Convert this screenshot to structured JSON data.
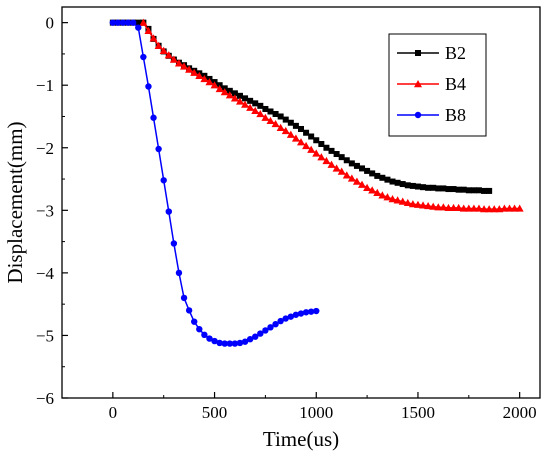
{
  "chart_data": {
    "type": "line",
    "title": "",
    "xlabel": "Time(us)",
    "ylabel": "Displacement(mm)",
    "xlim": [
      -250,
      2100
    ],
    "ylim": [
      -6,
      0.25
    ],
    "xticks": [
      0,
      500,
      1000,
      1500,
      2000
    ],
    "yticks": [
      0,
      -1,
      -2,
      -3,
      -4,
      -5,
      -6
    ],
    "grid": false,
    "legend_position": "top-right",
    "series": [
      {
        "name": "B2",
        "color": "#000000",
        "marker": "square",
        "x": [
          0,
          25,
          50,
          75,
          100,
          125,
          150,
          175,
          200,
          225,
          250,
          275,
          300,
          325,
          350,
          375,
          400,
          425,
          450,
          475,
          500,
          525,
          550,
          575,
          600,
          625,
          650,
          675,
          700,
          725,
          750,
          775,
          800,
          825,
          850,
          875,
          900,
          925,
          950,
          975,
          1000,
          1025,
          1050,
          1075,
          1100,
          1125,
          1150,
          1175,
          1200,
          1225,
          1250,
          1275,
          1300,
          1325,
          1350,
          1375,
          1400,
          1425,
          1450,
          1475,
          1500,
          1525,
          1550,
          1575,
          1600,
          1625,
          1650,
          1675,
          1700,
          1725,
          1750,
          1775,
          1800,
          1825,
          1850
        ],
        "y": [
          0,
          0,
          0,
          0,
          0,
          0,
          0,
          -0.1,
          -0.26,
          -0.37,
          -0.46,
          -0.53,
          -0.59,
          -0.64,
          -0.68,
          -0.73,
          -0.77,
          -0.81,
          -0.85,
          -0.9,
          -0.95,
          -1.0,
          -1.05,
          -1.09,
          -1.13,
          -1.17,
          -1.21,
          -1.25,
          -1.29,
          -1.33,
          -1.38,
          -1.42,
          -1.46,
          -1.5,
          -1.55,
          -1.6,
          -1.65,
          -1.7,
          -1.76,
          -1.82,
          -1.88,
          -1.94,
          -2.0,
          -2.05,
          -2.1,
          -2.15,
          -2.2,
          -2.25,
          -2.29,
          -2.33,
          -2.37,
          -2.41,
          -2.45,
          -2.48,
          -2.51,
          -2.54,
          -2.56,
          -2.58,
          -2.6,
          -2.61,
          -2.62,
          -2.63,
          -2.64,
          -2.64,
          -2.65,
          -2.65,
          -2.66,
          -2.66,
          -2.67,
          -2.67,
          -2.68,
          -2.68,
          -2.68,
          -2.69,
          -2.69
        ]
      },
      {
        "name": "B4",
        "color": "#ff0000",
        "marker": "triangle",
        "x": [
          150,
          175,
          200,
          225,
          250,
          275,
          300,
          325,
          350,
          375,
          400,
          425,
          450,
          475,
          500,
          525,
          550,
          575,
          600,
          625,
          650,
          675,
          700,
          725,
          750,
          775,
          800,
          825,
          850,
          875,
          900,
          925,
          950,
          975,
          1000,
          1025,
          1050,
          1075,
          1100,
          1125,
          1150,
          1175,
          1200,
          1225,
          1250,
          1275,
          1300,
          1325,
          1350,
          1375,
          1400,
          1425,
          1450,
          1475,
          1500,
          1525,
          1550,
          1575,
          1600,
          1625,
          1650,
          1675,
          1700,
          1725,
          1750,
          1775,
          1800,
          1825,
          1850,
          1875,
          1900,
          1925,
          1950,
          1975,
          2000
        ],
        "y": [
          0,
          -0.13,
          -0.25,
          -0.37,
          -0.45,
          -0.52,
          -0.59,
          -0.65,
          -0.7,
          -0.75,
          -0.8,
          -0.85,
          -0.9,
          -0.95,
          -1.0,
          -1.06,
          -1.11,
          -1.16,
          -1.21,
          -1.26,
          -1.31,
          -1.36,
          -1.41,
          -1.46,
          -1.52,
          -1.57,
          -1.62,
          -1.68,
          -1.73,
          -1.79,
          -1.85,
          -1.91,
          -1.97,
          -2.03,
          -2.09,
          -2.15,
          -2.21,
          -2.27,
          -2.33,
          -2.38,
          -2.44,
          -2.49,
          -2.54,
          -2.59,
          -2.64,
          -2.68,
          -2.72,
          -2.76,
          -2.79,
          -2.82,
          -2.84,
          -2.86,
          -2.88,
          -2.9,
          -2.91,
          -2.92,
          -2.93,
          -2.94,
          -2.95,
          -2.95,
          -2.96,
          -2.96,
          -2.96,
          -2.97,
          -2.97,
          -2.97,
          -2.97,
          -2.98,
          -2.98,
          -2.98,
          -2.98,
          -2.97,
          -2.97,
          -2.97,
          -2.97
        ]
      },
      {
        "name": "B8",
        "color": "#0000ff",
        "marker": "circle",
        "x": [
          0,
          25,
          50,
          75,
          100,
          125,
          150,
          175,
          200,
          225,
          250,
          275,
          300,
          325,
          350,
          375,
          400,
          425,
          450,
          475,
          500,
          525,
          550,
          575,
          600,
          625,
          650,
          675,
          700,
          725,
          750,
          775,
          800,
          825,
          850,
          875,
          900,
          925,
          950,
          975,
          1000
        ],
        "y": [
          0,
          0,
          0,
          0,
          0,
          -0.08,
          -0.55,
          -1.02,
          -1.52,
          -2.02,
          -2.52,
          -3.02,
          -3.53,
          -4.0,
          -4.4,
          -4.6,
          -4.78,
          -4.9,
          -4.99,
          -5.05,
          -5.09,
          -5.12,
          -5.13,
          -5.13,
          -5.13,
          -5.12,
          -5.1,
          -5.06,
          -5.02,
          -4.97,
          -4.92,
          -4.87,
          -4.82,
          -4.77,
          -4.73,
          -4.7,
          -4.67,
          -4.65,
          -4.63,
          -4.62,
          -4.61
        ]
      }
    ]
  }
}
